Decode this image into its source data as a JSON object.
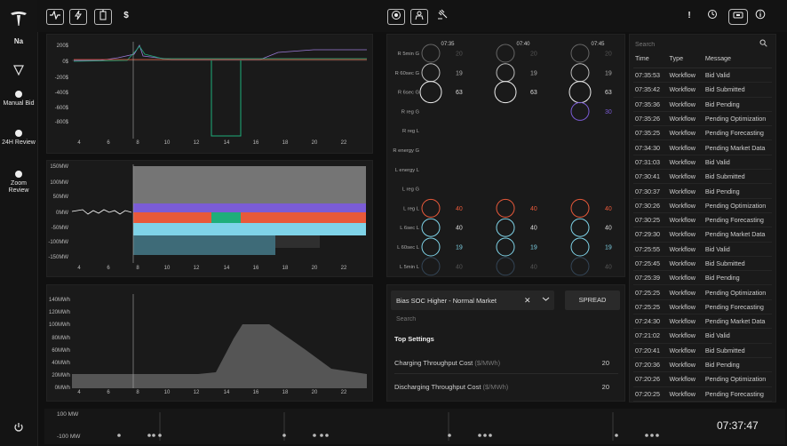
{
  "sidebar": {
    "user_initials": "Na",
    "items": [
      {
        "label": "Manual Bid"
      },
      {
        "label": "24H Review"
      },
      {
        "label": "Zoom Review"
      }
    ]
  },
  "toolbar": {
    "dollar": "$",
    "left_icons": [
      "pulse-icon",
      "bolt-icon",
      "battery-icon",
      "dollar-icon"
    ],
    "center_icons": [
      "target-icon",
      "person-icon",
      "auction-icon"
    ],
    "right_icons": [
      "alert-icon",
      "history-icon",
      "device-icon",
      "info-icon"
    ],
    "alert": "!"
  },
  "price_chart": {
    "y_labels": [
      "200$",
      "0$",
      "-200$",
      "-400$",
      "-600$",
      "-800$"
    ],
    "x_labels": [
      "4",
      "6",
      "8",
      "10",
      "12",
      "14",
      "16",
      "18",
      "20",
      "22"
    ]
  },
  "power_chart": {
    "y_labels": [
      "150MW",
      "100MW",
      "50MW",
      "0MW",
      "-50MW",
      "-100MW",
      "-150MW"
    ],
    "x_labels": [
      "4",
      "6",
      "8",
      "10",
      "12",
      "14",
      "16",
      "18",
      "20",
      "22"
    ]
  },
  "energy_chart": {
    "y_labels": [
      "140MWh",
      "120MWh",
      "100MWh",
      "80MWh",
      "60MWh",
      "40MWh",
      "20MWh",
      "0MWh"
    ],
    "x_labels": [
      "4",
      "6",
      "8",
      "10",
      "12",
      "14",
      "16",
      "18",
      "20",
      "22"
    ]
  },
  "bid_grid": {
    "times": [
      "07:35",
      "07:40",
      "07:45"
    ],
    "rows": [
      {
        "label": "R 5min G",
        "values": [
          "20",
          "20",
          "20"
        ]
      },
      {
        "label": "R 60sec G",
        "values": [
          "19",
          "19",
          "19"
        ]
      },
      {
        "label": "R 6sec G",
        "values": [
          "63",
          "63",
          "63"
        ]
      },
      {
        "label": "R reg G",
        "values": [
          "",
          "",
          "30"
        ]
      },
      {
        "label": "R reg L",
        "values": [
          "",
          "",
          ""
        ]
      },
      {
        "label": "R energy G",
        "values": [
          "",
          "",
          ""
        ]
      },
      {
        "label": "L energy L",
        "values": [
          "",
          "",
          ""
        ]
      },
      {
        "label": "L reg G",
        "values": [
          "",
          "",
          ""
        ]
      },
      {
        "label": "L reg L",
        "values": [
          "40",
          "40",
          "40"
        ]
      },
      {
        "label": "L 6sec L",
        "values": [
          "40",
          "40",
          "40"
        ]
      },
      {
        "label": "L 60sec L",
        "values": [
          "19",
          "19",
          "19"
        ]
      },
      {
        "label": "L 5min L",
        "values": [
          "40",
          "40",
          "40"
        ]
      }
    ]
  },
  "settings": {
    "select_value": "Bias SOC Higher - Normal Market",
    "clear": "✕",
    "spread_label": "SPREAD",
    "search_placeholder": "Search",
    "section_title": "Top Settings",
    "items": [
      {
        "label": "Charging Throughput Cost",
        "unit": "($/MWh)",
        "value": "20"
      },
      {
        "label": "Discharging Throughput Cost",
        "unit": "($/MWh)",
        "value": "20"
      }
    ]
  },
  "log": {
    "search_placeholder": "Search",
    "columns": [
      "Time",
      "Type",
      "Message"
    ],
    "rows": [
      [
        "07:35:53",
        "Workflow",
        "Bid Valid"
      ],
      [
        "07:35:42",
        "Workflow",
        "Bid Submitted"
      ],
      [
        "07:35:36",
        "Workflow",
        "Bid Pending"
      ],
      [
        "07:35:26",
        "Workflow",
        "Pending Optimization"
      ],
      [
        "07:35:25",
        "Workflow",
        "Pending Forecasting"
      ],
      [
        "07:34:30",
        "Workflow",
        "Pending Market Data"
      ],
      [
        "07:31:03",
        "Workflow",
        "Bid Valid"
      ],
      [
        "07:30:41",
        "Workflow",
        "Bid Submitted"
      ],
      [
        "07:30:37",
        "Workflow",
        "Bid Pending"
      ],
      [
        "07:30:26",
        "Workflow",
        "Pending Optimization"
      ],
      [
        "07:30:25",
        "Workflow",
        "Pending Forecasting"
      ],
      [
        "07:29:30",
        "Workflow",
        "Pending Market Data"
      ],
      [
        "07:25:55",
        "Workflow",
        "Bid Valid"
      ],
      [
        "07:25:45",
        "Workflow",
        "Bid Submitted"
      ],
      [
        "07:25:39",
        "Workflow",
        "Bid Pending"
      ],
      [
        "07:25:25",
        "Workflow",
        "Pending Optimization"
      ],
      [
        "07:25:25",
        "Workflow",
        "Pending Forecasting"
      ],
      [
        "07:24:30",
        "Workflow",
        "Pending Market Data"
      ],
      [
        "07:21:02",
        "Workflow",
        "Bid Valid"
      ],
      [
        "07:20:41",
        "Workflow",
        "Bid Submitted"
      ],
      [
        "07:20:36",
        "Workflow",
        "Bid Pending"
      ],
      [
        "07:20:26",
        "Workflow",
        "Pending Optimization"
      ],
      [
        "07:20:25",
        "Workflow",
        "Pending Forecasting"
      ]
    ]
  },
  "timeline": {
    "top_label": "100 MW",
    "bottom_label": "-100 MW",
    "clock": "07:37:47"
  },
  "colors": {
    "green": "#1fae7a",
    "orange": "#e8593a",
    "cyan": "#7fd3e8",
    "purple": "#7b5cd6",
    "red": "#e8593a"
  }
}
